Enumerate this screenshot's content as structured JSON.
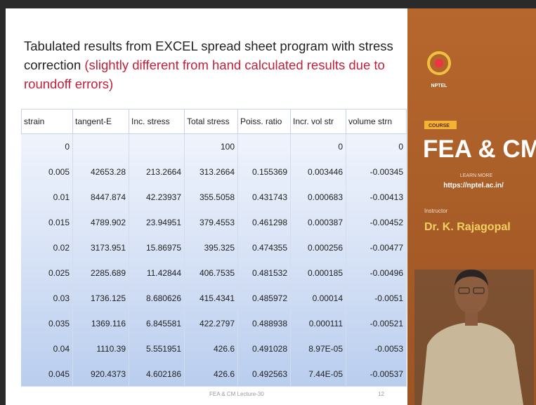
{
  "slide": {
    "title": "Tabulated results from EXCEL spread sheet program with stress correction",
    "title_note": "(slightly different from hand calculated results due to roundoff errors)",
    "footer": "FEA & CM Lecture-30",
    "page": "12"
  },
  "table": {
    "header": [
      "strain",
      "tangent-E",
      "Inc. stress",
      "Total stress",
      "Poiss. ratio",
      "Incr. vol str",
      "volume strn"
    ],
    "rows": [
      [
        "0",
        null,
        null,
        "100",
        null,
        "0",
        "0"
      ],
      [
        "0.005",
        "42653.28",
        "213.2664",
        "313.2664",
        "0.155369",
        "0.003446",
        "-0.00345"
      ],
      [
        "0.01",
        "8447.874",
        "42.23937",
        "355.5058",
        "0.431743",
        "0.000683",
        "-0.00413"
      ],
      [
        "0.015",
        "4789.902",
        "23.94951",
        "379.4553",
        "0.461298",
        "0.000387",
        "-0.00452"
      ],
      [
        "0.02",
        "3173.951",
        "15.86975",
        "395.325",
        "0.474355",
        "0.000256",
        "-0.00477"
      ],
      [
        "0.025",
        "2285.689",
        "11.42844",
        "406.7535",
        "0.481532",
        "0.000185",
        "-0.00496"
      ],
      [
        "0.03",
        "1736.125",
        "8.680626",
        "415.4341",
        "0.485972",
        "0.00014",
        "-0.0051"
      ],
      [
        "0.035",
        "1369.116",
        "6.845581",
        "422.2797",
        "0.488938",
        "0.000111",
        "-0.00521"
      ],
      [
        "0.04",
        "1110.39",
        "5.551951",
        "426.6",
        "0.491028",
        "8.97E-05",
        "-0.0053"
      ],
      [
        "0.045",
        "920.4373",
        "4.602186",
        "426.6",
        "0.492563",
        "7.44E-05",
        "-0.00537"
      ]
    ]
  },
  "panel": {
    "logo": "NPTEL",
    "badge": "COURSE",
    "course": "FEA & CM",
    "learn_more": "LEARN MORE",
    "url": "https://nptel.ac.in/",
    "instructor_label": "Instructor",
    "instructor": "Dr. K. Rajagopal"
  }
}
